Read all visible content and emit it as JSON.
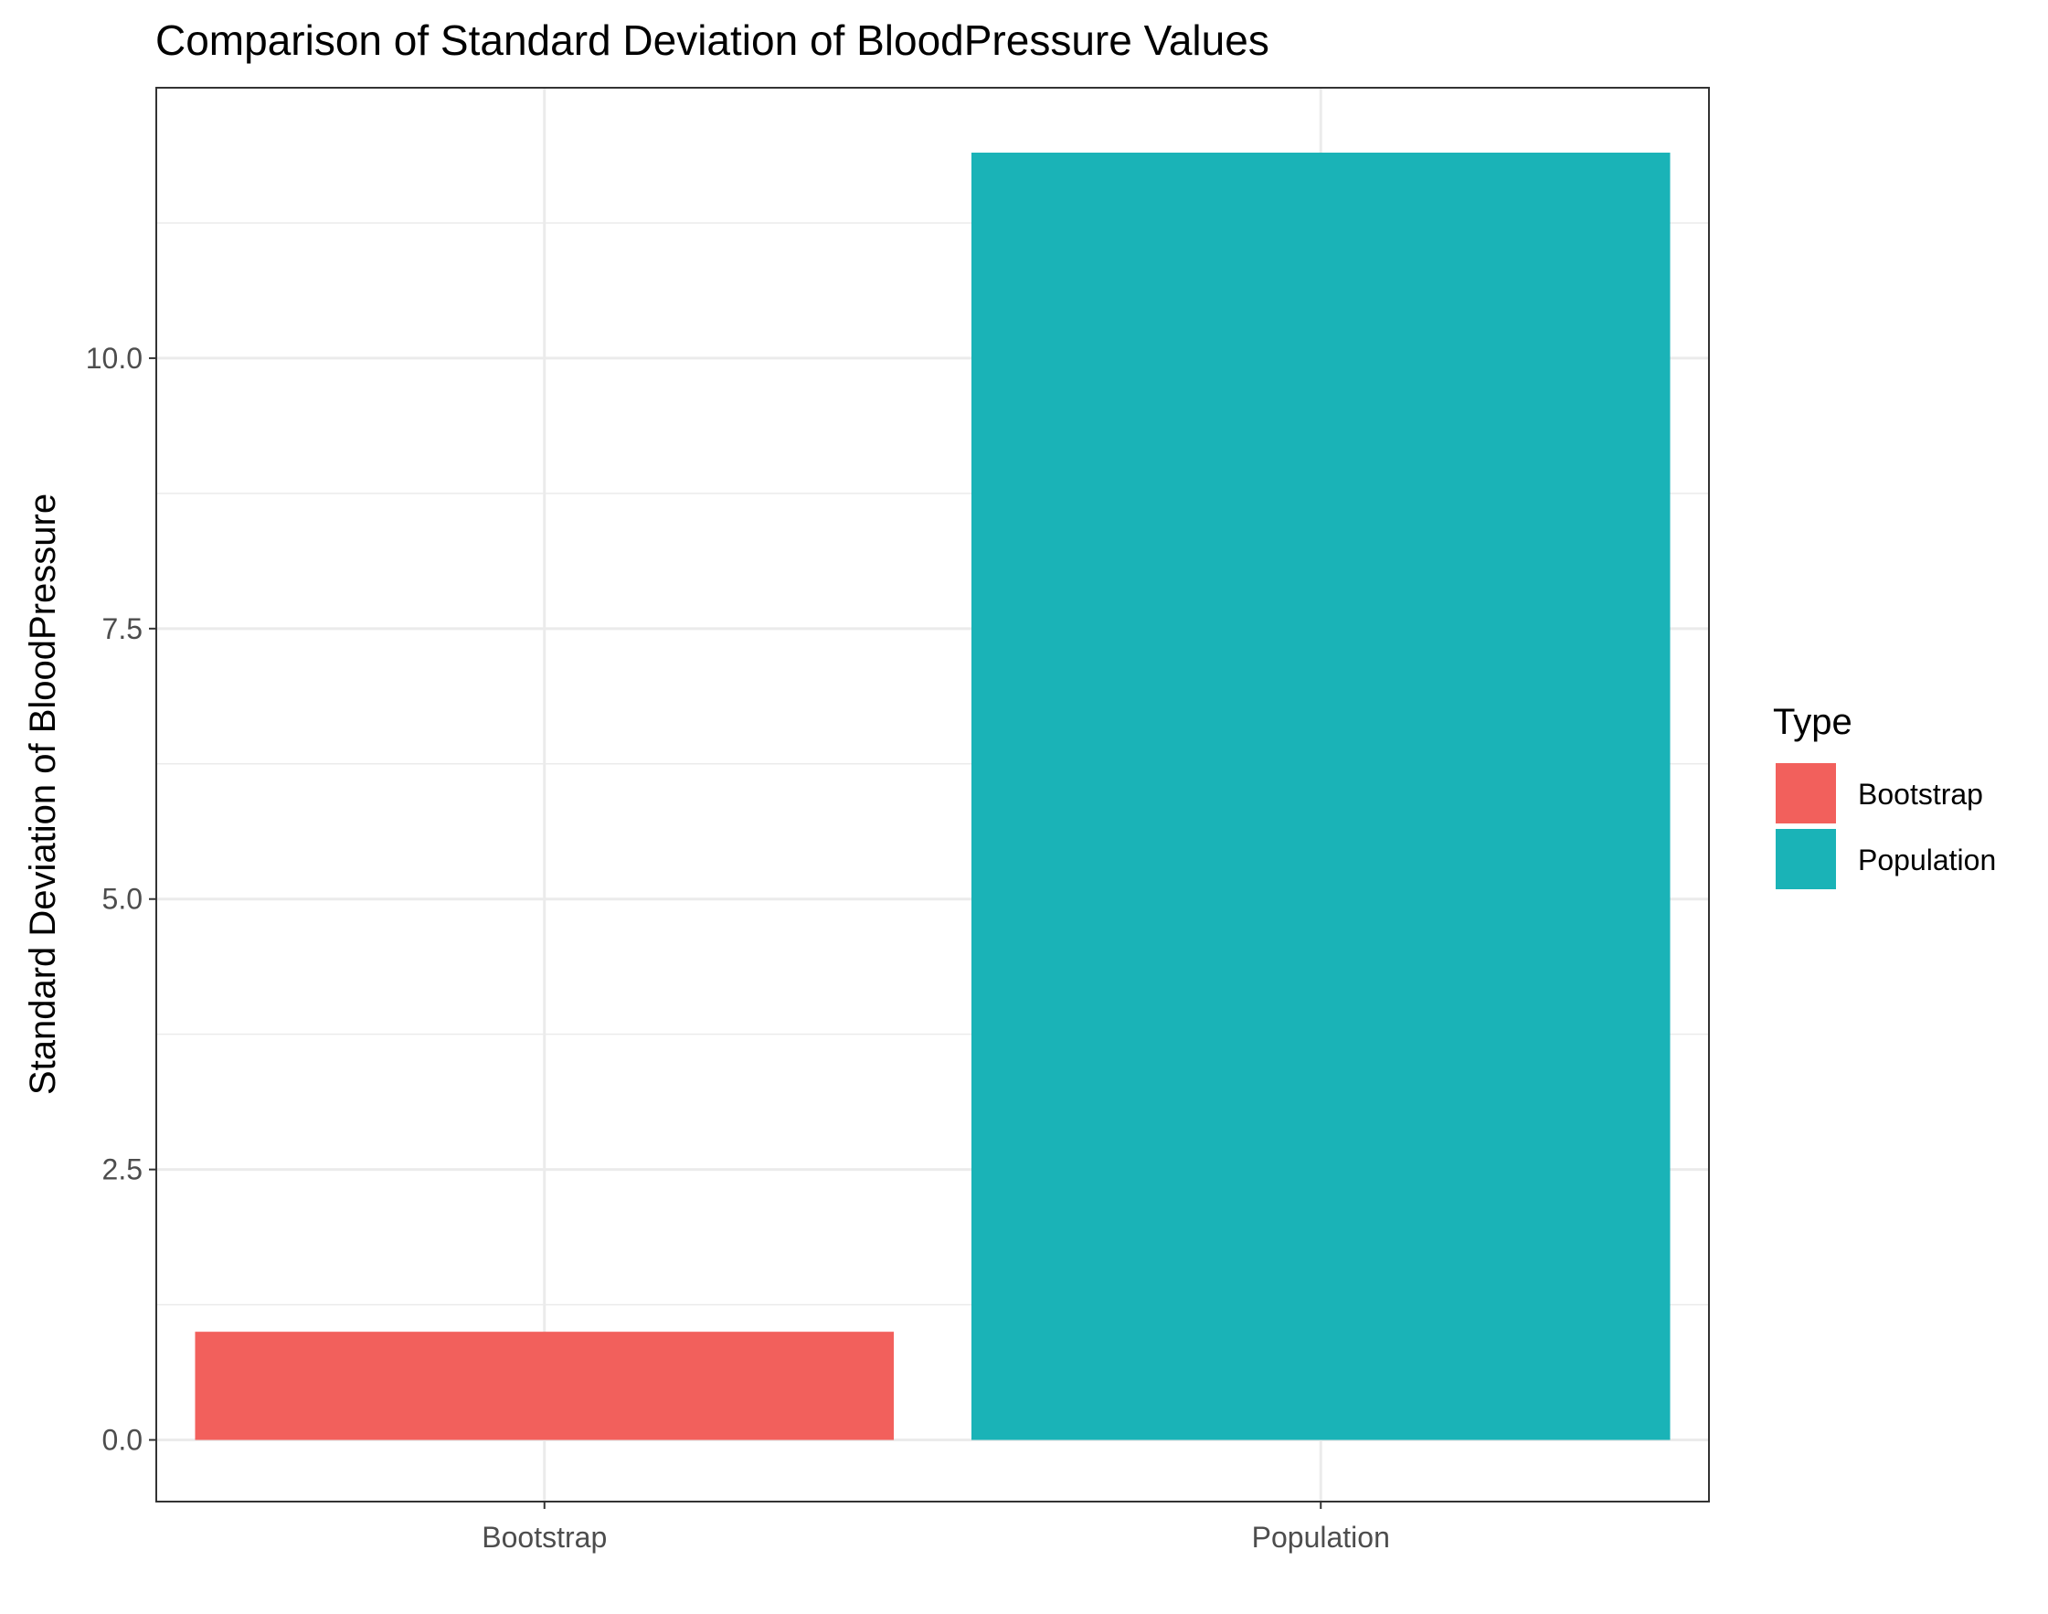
{
  "chart_data": {
    "type": "bar",
    "title": "Comparison of Standard Deviation of BloodPressure Values",
    "xlabel": "",
    "ylabel": "Standard Deviation of BloodPressure",
    "categories": [
      "Bootstrap",
      "Population"
    ],
    "values": [
      1.0,
      11.9
    ],
    "colors": [
      "#F2605C",
      "#1AB3B7"
    ],
    "ylim": [
      -0.57,
      12.5
    ],
    "yticks": [
      0.0,
      2.5,
      5.0,
      7.5,
      10.0
    ],
    "ytick_labels": [
      "0.0",
      "2.5",
      "5.0",
      "7.5",
      "10.0"
    ],
    "grid": true,
    "legend": {
      "title": "Type",
      "position": "right",
      "entries": [
        "Bootstrap",
        "Population"
      ]
    }
  }
}
